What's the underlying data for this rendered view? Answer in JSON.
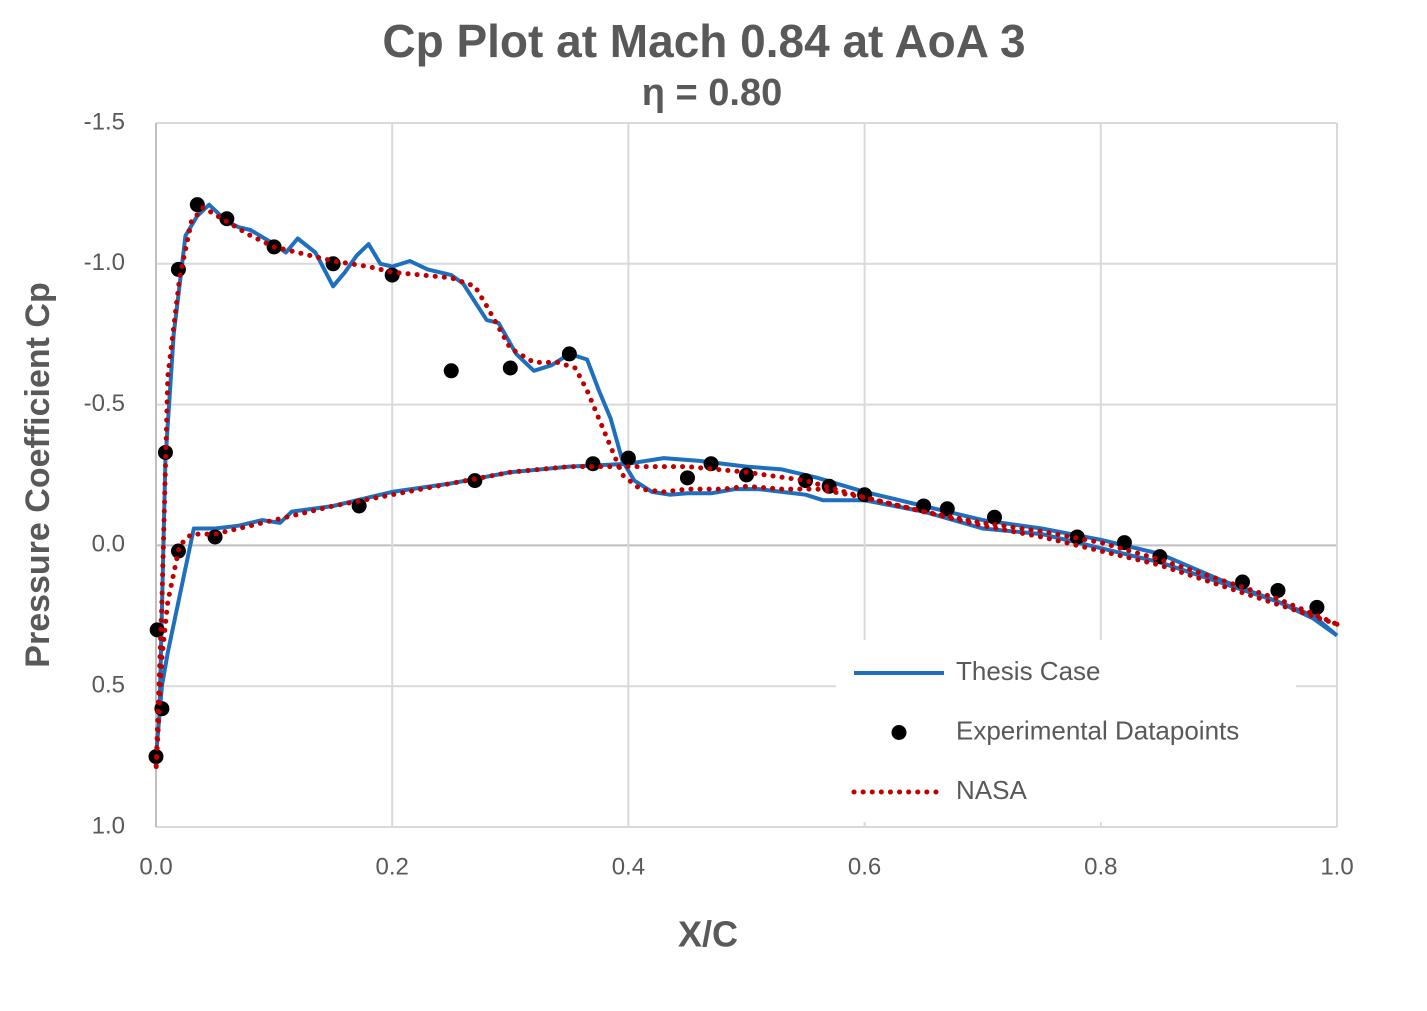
{
  "chart_data": {
    "type": "line",
    "title": "Cp Plot at Mach 0.84 at AoA 3",
    "subtitle": "η = 0.80",
    "x_label": "X/C",
    "y_label": "Pressure Coefficient Cp",
    "xlim": [
      0,
      1
    ],
    "xticks": [
      {
        "value": 0,
        "label": "0.0"
      },
      0.2,
      0.4,
      0.6,
      0.8,
      {
        "value": 1,
        "label": "1.0"
      }
    ],
    "ylim": [
      -1.5,
      1
    ],
    "yticks": [
      -1.5,
      {
        "value": -1,
        "label": "-1.0"
      },
      -0.5,
      {
        "value": 0,
        "label": "0.0"
      },
      0.5,
      {
        "value": 1,
        "label": "1.0"
      }
    ],
    "y_inverted": true,
    "grid": true,
    "legend": "lower right",
    "series": [
      {
        "name": "Thesis Case",
        "color": "#1f6fbf",
        "mark": "line",
        "dash": "solid",
        "x": [
          1.0,
          0.98,
          0.95,
          0.9,
          0.85,
          0.8,
          0.75,
          0.7,
          0.65,
          0.6,
          0.565,
          0.55,
          0.53,
          0.51,
          0.49,
          0.47,
          0.45,
          0.435,
          0.42,
          0.405,
          0.395,
          0.385,
          0.375,
          0.365,
          0.35,
          0.335,
          0.32,
          0.305,
          0.29,
          0.28,
          0.26,
          0.25,
          0.23,
          0.215,
          0.2,
          0.19,
          0.18,
          0.17,
          0.16,
          0.15,
          0.135,
          0.12,
          0.11,
          0.1,
          0.08,
          0.07,
          0.06,
          0.045,
          0.035,
          0.025,
          0.015,
          0.008,
          0.003,
          0.0,
          0.005,
          0.01,
          0.02,
          0.032,
          0.05,
          0.07,
          0.09,
          0.105,
          0.115,
          0.15,
          0.2,
          0.25,
          0.3,
          0.35,
          0.4,
          0.43,
          0.46,
          0.5,
          0.53,
          0.56,
          0.6,
          0.65,
          0.7,
          0.75,
          0.8,
          0.85,
          0.9,
          0.95,
          0.98,
          1.0
        ],
        "values": [
          0.32,
          0.25,
          0.2,
          0.13,
          0.06,
          0.01,
          -0.04,
          -0.06,
          -0.12,
          -0.16,
          -0.16,
          -0.18,
          -0.19,
          -0.2,
          -0.2,
          -0.185,
          -0.185,
          -0.18,
          -0.19,
          -0.23,
          -0.3,
          -0.45,
          -0.55,
          -0.66,
          -0.68,
          -0.64,
          -0.62,
          -0.68,
          -0.79,
          -0.8,
          -0.93,
          -0.96,
          -0.98,
          -1.01,
          -0.99,
          -1.0,
          -1.07,
          -1.03,
          -0.97,
          -0.92,
          -1.04,
          -1.09,
          -1.04,
          -1.07,
          -1.12,
          -1.13,
          -1.15,
          -1.21,
          -1.17,
          -1.1,
          -0.75,
          -0.3,
          0.6,
          0.75,
          0.5,
          0.38,
          0.18,
          -0.06,
          -0.06,
          -0.07,
          -0.09,
          -0.08,
          -0.12,
          -0.14,
          -0.19,
          -0.22,
          -0.26,
          -0.28,
          -0.29,
          -0.31,
          -0.3,
          -0.28,
          -0.27,
          -0.24,
          -0.19,
          -0.14,
          -0.09,
          -0.06,
          -0.02,
          0.03,
          0.12,
          0.2,
          0.26,
          0.32
        ]
      },
      {
        "name": "Experimental Datapoints",
        "color": "#000000",
        "mark": "dots",
        "x": [
          0.0,
          0.001,
          0.005,
          0.008,
          0.019,
          0.019,
          0.035,
          0.05,
          0.06,
          0.1,
          0.15,
          0.172,
          0.2,
          0.25,
          0.27,
          0.3,
          0.35,
          0.37,
          0.4,
          0.45,
          0.47,
          0.5,
          0.55,
          0.57,
          0.6,
          0.65,
          0.67,
          0.71,
          0.78,
          0.82,
          0.85,
          0.92,
          0.95,
          0.983
        ],
        "values": [
          0.75,
          0.3,
          0.58,
          -0.33,
          0.02,
          -0.98,
          -1.21,
          -0.03,
          -1.16,
          -1.06,
          -1.0,
          -0.14,
          -0.96,
          -0.62,
          -0.23,
          -0.63,
          -0.68,
          -0.29,
          -0.31,
          -0.24,
          -0.29,
          -0.25,
          -0.23,
          -0.21,
          -0.18,
          -0.14,
          -0.13,
          -0.1,
          -0.03,
          -0.01,
          0.04,
          0.13,
          0.16,
          0.22
        ]
      },
      {
        "name": "NASA",
        "color": "#c00000",
        "mark": "line",
        "dash": "dotted",
        "x": [
          1.0,
          0.95,
          0.9,
          0.85,
          0.8,
          0.75,
          0.7,
          0.65,
          0.6,
          0.56,
          0.53,
          0.5,
          0.48,
          0.45,
          0.43,
          0.41,
          0.395,
          0.38,
          0.365,
          0.355,
          0.34,
          0.32,
          0.3,
          0.28,
          0.27,
          0.25,
          0.2,
          0.18,
          0.15,
          0.12,
          0.1,
          0.08,
          0.06,
          0.04,
          0.03,
          0.02,
          0.01,
          0.005,
          0.0,
          0.005,
          0.01,
          0.02,
          0.03,
          0.05,
          0.1,
          0.15,
          0.2,
          0.25,
          0.3,
          0.35,
          0.4,
          0.45,
          0.5,
          0.55,
          0.6,
          0.65,
          0.7,
          0.75,
          0.8,
          0.85,
          0.9,
          0.95,
          1.0
        ],
        "values": [
          0.28,
          0.21,
          0.14,
          0.07,
          0.02,
          -0.03,
          -0.07,
          -0.12,
          -0.17,
          -0.2,
          -0.2,
          -0.21,
          -0.2,
          -0.2,
          -0.19,
          -0.2,
          -0.25,
          -0.4,
          -0.55,
          -0.63,
          -0.65,
          -0.65,
          -0.7,
          -0.85,
          -0.92,
          -0.95,
          -0.97,
          -0.99,
          -1.01,
          -1.04,
          -1.06,
          -1.1,
          -1.15,
          -1.2,
          -1.15,
          -0.95,
          -0.6,
          0.2,
          0.8,
          0.4,
          0.2,
          0.0,
          -0.04,
          -0.04,
          -0.09,
          -0.14,
          -0.18,
          -0.22,
          -0.26,
          -0.28,
          -0.28,
          -0.28,
          -0.26,
          -0.23,
          -0.17,
          -0.12,
          -0.08,
          -0.05,
          -0.01,
          0.05,
          0.12,
          0.19,
          0.28
        ]
      }
    ]
  }
}
